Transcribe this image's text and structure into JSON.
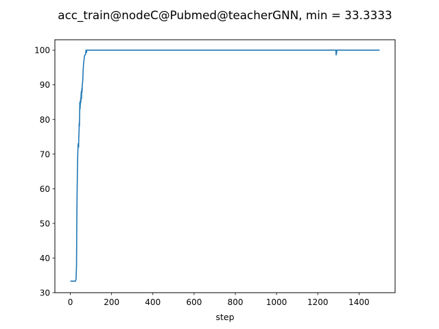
{
  "chart_data": {
    "type": "line",
    "title": "acc_train@nodeC@Pubmed@teacherGNN, min = 33.3333",
    "xlabel": "step",
    "ylabel": "",
    "xlim": [
      -75,
      1575
    ],
    "ylim": [
      30,
      103
    ],
    "xticks": [
      0,
      200,
      400,
      600,
      800,
      1000,
      1200,
      1400
    ],
    "yticks": [
      30,
      40,
      50,
      60,
      70,
      80,
      90,
      100
    ],
    "grid": false,
    "line_color": "#1f77b4",
    "series": [
      {
        "x": [
          0,
          10,
          20,
          25,
          28,
          30,
          32,
          34,
          36,
          38,
          40,
          41,
          42,
          43,
          44,
          45,
          46,
          47,
          48,
          49,
          50,
          51,
          52,
          53,
          54,
          55,
          56,
          57,
          58,
          60,
          62,
          64,
          66,
          68,
          70,
          72,
          74,
          76,
          78,
          80,
          85,
          90,
          100,
          200,
          400,
          600,
          800,
          1000,
          1200,
          1288,
          1289,
          1290,
          1291,
          1292,
          1300,
          1400,
          1500
        ],
        "y": [
          33.3333,
          33.3333,
          33.3333,
          33.3333,
          34,
          38,
          55,
          64,
          70,
          73,
          72,
          75,
          76,
          79,
          78,
          81,
          85,
          83,
          84,
          85,
          86,
          85,
          87,
          88,
          86,
          88,
          89,
          88,
          90,
          91,
          94,
          96,
          97,
          98,
          98.6,
          98.6,
          99,
          100,
          99.3,
          100,
          100,
          100,
          100,
          100,
          100,
          100,
          100,
          100,
          100,
          100,
          98.6,
          100,
          99,
          100,
          100,
          100,
          100
        ]
      }
    ]
  }
}
